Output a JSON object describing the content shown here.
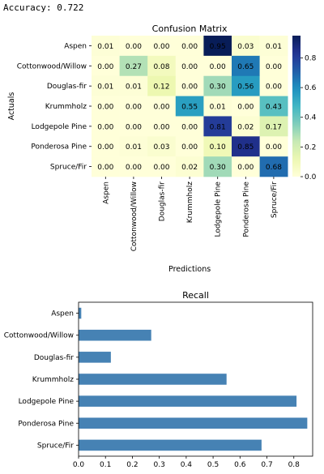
{
  "output_text": {
    "accuracy_label": "Accuracy:",
    "accuracy_value": "0.722"
  },
  "chart_data": [
    {
      "type": "heatmap",
      "title": "Confusion Matrix",
      "xlabel": "Predictions",
      "ylabel": "Actuals",
      "row_labels": [
        "Aspen",
        "Cottonwood/Willow",
        "Douglas-fir",
        "Krummholz",
        "Lodgepole Pine",
        "Ponderosa Pine",
        "Spruce/Fir"
      ],
      "col_labels": [
        "Aspen",
        "Cottonwood/Willow",
        "Douglas-fir",
        "Krummholz",
        "Lodgepole Pine",
        "Ponderosa Pine",
        "Spruce/Fir"
      ],
      "values": [
        [
          0.01,
          0.0,
          0.0,
          0.0,
          0.95,
          0.03,
          0.01
        ],
        [
          0.0,
          0.27,
          0.08,
          0.0,
          0.0,
          0.65,
          0.0
        ],
        [
          0.01,
          0.01,
          0.12,
          0.0,
          0.3,
          0.56,
          0.0
        ],
        [
          0.0,
          0.0,
          0.0,
          0.55,
          0.01,
          0.0,
          0.43
        ],
        [
          0.0,
          0.0,
          0.0,
          0.0,
          0.81,
          0.02,
          0.17
        ],
        [
          0.0,
          0.01,
          0.03,
          0.0,
          0.1,
          0.85,
          0.0
        ],
        [
          0.0,
          0.0,
          0.0,
          0.02,
          0.3,
          0.0,
          0.68
        ]
      ],
      "colorbar": {
        "range": [
          0,
          0.95
        ],
        "ticks": [
          "0.0",
          "0.2",
          "0.4",
          "0.6",
          "0.8"
        ],
        "tick_values": [
          0,
          0.2,
          0.4,
          0.6,
          0.8
        ],
        "colormap": "YlGnBu"
      }
    },
    {
      "type": "bar",
      "orientation": "horizontal",
      "title": "Recall",
      "categories": [
        "Aspen",
        "Cottonwood/Willow",
        "Douglas-fir",
        "Krummholz",
        "Lodgepole Pine",
        "Ponderosa Pine",
        "Spruce/Fir"
      ],
      "values": [
        0.01,
        0.27,
        0.12,
        0.55,
        0.81,
        0.85,
        0.68
      ],
      "xlim": [
        0,
        0.87
      ],
      "xticks": [
        "0.0",
        "0.1",
        "0.2",
        "0.3",
        "0.4",
        "0.5",
        "0.6",
        "0.7",
        "0.8"
      ],
      "xtick_values": [
        0,
        0.1,
        0.2,
        0.3,
        0.4,
        0.5,
        0.6,
        0.7,
        0.8
      ],
      "bar_color": "#4682b4",
      "grid": false
    }
  ]
}
